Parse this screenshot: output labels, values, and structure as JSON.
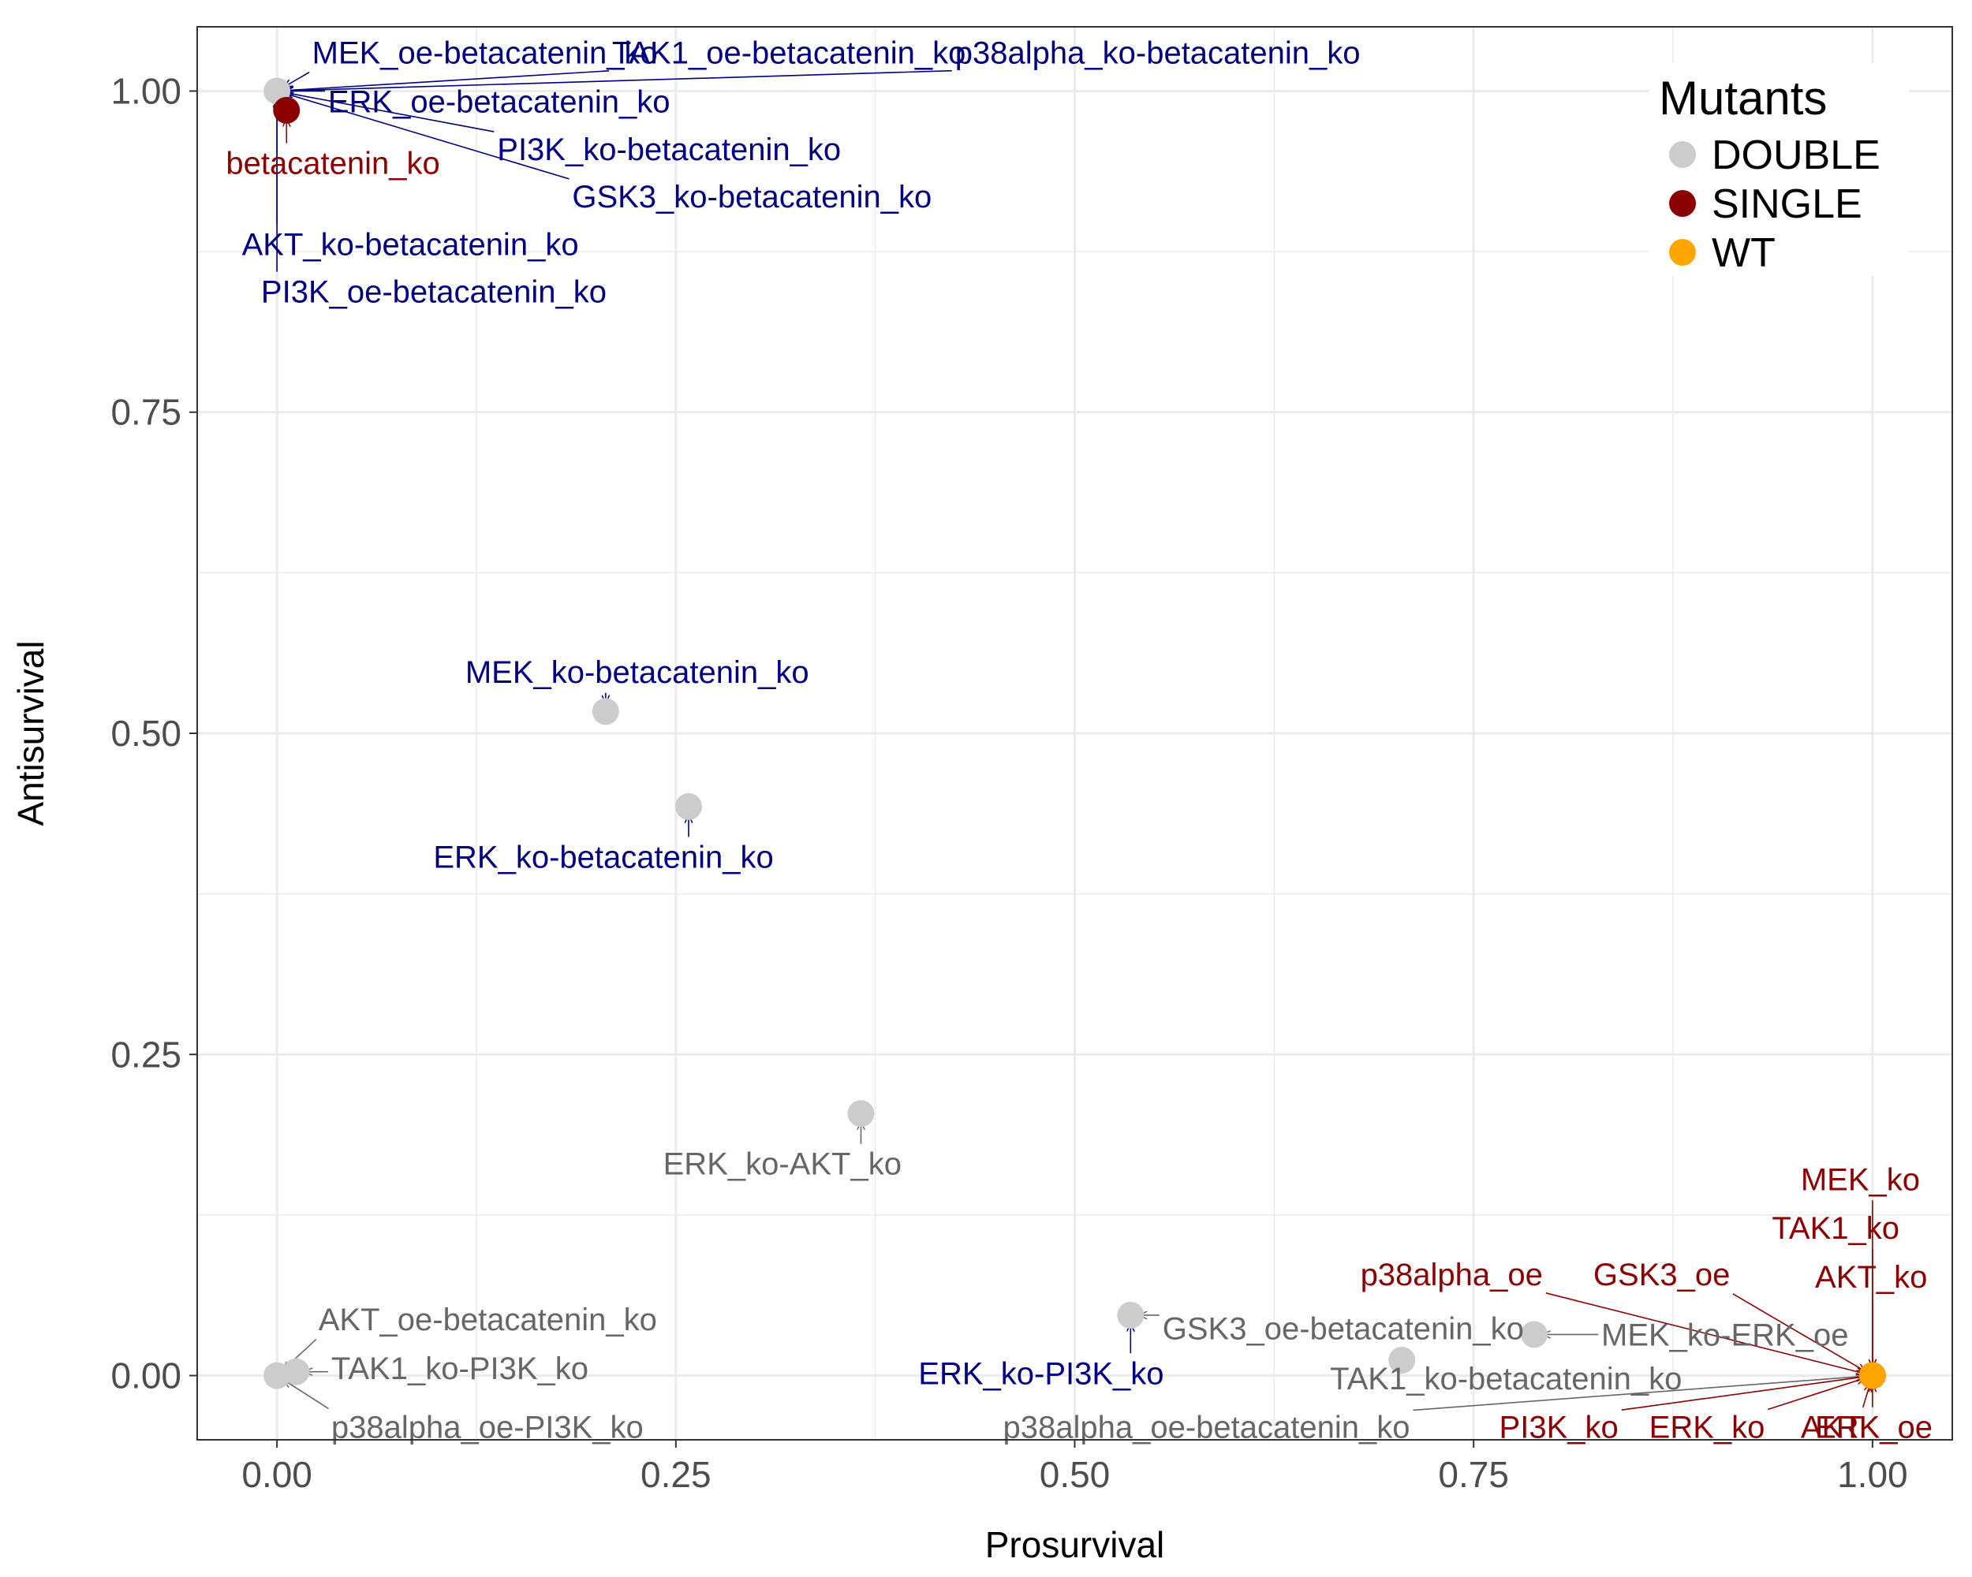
{
  "chart_data": {
    "type": "scatter",
    "xlabel": "Prosurvival",
    "ylabel": "Antisurvival",
    "xlim": [
      -0.05,
      1.05
    ],
    "ylim": [
      -0.05,
      1.05
    ],
    "x_ticks": [
      "0.00",
      "0.25",
      "0.50",
      "0.75",
      "1.00"
    ],
    "y_ticks": [
      "0.00",
      "0.25",
      "0.50",
      "0.75",
      "1.00"
    ],
    "grid": true,
    "legend": {
      "title": "Mutants",
      "position": "top-right",
      "entries": [
        {
          "name": "DOUBLE",
          "color": "#cccccc"
        },
        {
          "name": "SINGLE",
          "color": "#8b0000"
        },
        {
          "name": "WT",
          "color": "#ffa500"
        }
      ]
    },
    "colors": {
      "DOUBLE": "#cccccc",
      "SINGLE": "#8b0000",
      "WT": "#ffa500",
      "label_dark_blue": "#000080",
      "label_gray": "#666666",
      "label_red": "#8b0000"
    },
    "points": [
      {
        "label": "MEK_oe-betacatenin_ko",
        "x": 0.0,
        "y": 1.0,
        "group": "DOUBLE",
        "label_color": "#000080",
        "lx": 0.022,
        "ly": 1.03
      },
      {
        "label": "TAK1_oe-betacatenin_ko",
        "x": 0.0,
        "y": 1.0,
        "group": "DOUBLE",
        "label_color": "#000080",
        "lx": 0.21,
        "ly": 1.03
      },
      {
        "label": "p38alpha_ko-betacatenin_ko",
        "x": 0.0,
        "y": 1.0,
        "group": "DOUBLE",
        "label_color": "#000080",
        "lx": 0.425,
        "ly": 1.03
      },
      {
        "label": "ERK_oe-betacatenin_ko",
        "x": 0.0,
        "y": 1.0,
        "group": "DOUBLE",
        "label_color": "#000080",
        "lx": 0.032,
        "ly": 0.992
      },
      {
        "label": "PI3K_ko-betacatenin_ko",
        "x": 0.0,
        "y": 1.0,
        "group": "DOUBLE",
        "label_color": "#000080",
        "lx": 0.138,
        "ly": 0.955
      },
      {
        "label": "GSK3_ko-betacatenin_ko",
        "x": 0.0,
        "y": 1.0,
        "group": "DOUBLE",
        "label_color": "#000080",
        "lx": 0.185,
        "ly": 0.918
      },
      {
        "label": "AKT_ko-betacatenin_ko",
        "x": 0.0,
        "y": 1.0,
        "group": "DOUBLE",
        "label_color": "#000080",
        "lx": -0.022,
        "ly": 0.881
      },
      {
        "label": "PI3K_oe-betacatenin_ko",
        "x": 0.0,
        "y": 1.0,
        "group": "DOUBLE",
        "label_color": "#000080",
        "lx": -0.01,
        "ly": 0.844
      },
      {
        "label": "betacatenin_ko",
        "x": 0.006,
        "y": 0.985,
        "group": "SINGLE",
        "label_color": "#8b0000",
        "lx": -0.032,
        "ly": 0.944
      },
      {
        "label": "MEK_ko-betacatenin_ko",
        "x": 0.206,
        "y": 0.517,
        "group": "DOUBLE",
        "label_color": "#000080",
        "lx": 0.118,
        "ly": 0.548
      },
      {
        "label": "ERK_ko-betacatenin_ko",
        "x": 0.258,
        "y": 0.443,
        "group": "DOUBLE",
        "label_color": "#000080",
        "lx": 0.098,
        "ly": 0.404
      },
      {
        "label": "ERK_ko-AKT_ko",
        "x": 0.366,
        "y": 0.204,
        "group": "DOUBLE",
        "label_color": "#666666",
        "lx": 0.242,
        "ly": 0.165
      },
      {
        "label": "AKT_oe-betacatenin_ko",
        "x": 0.0,
        "y": 0.0,
        "group": "DOUBLE",
        "label_color": "#666666",
        "lx": 0.026,
        "ly": 0.044
      },
      {
        "label": "TAK1_ko-PI3K_ko",
        "x": 0.012,
        "y": 0.003,
        "group": "DOUBLE",
        "label_color": "#666666",
        "lx": 0.034,
        "ly": 0.006
      },
      {
        "label": "p38alpha_oe-PI3K_ko",
        "x": 0.0,
        "y": 0.0,
        "group": "DOUBLE",
        "label_color": "#666666",
        "lx": 0.034,
        "ly": -0.04
      },
      {
        "label": "GSK3_oe-betacatenin_ko",
        "x": 0.535,
        "y": 0.047,
        "group": "DOUBLE",
        "label_color": "#666666",
        "lx": 0.555,
        "ly": 0.037
      },
      {
        "label": "ERK_ko-PI3K_ko",
        "x": 0.535,
        "y": 0.047,
        "group": "DOUBLE",
        "label_color": "#000080",
        "lx": 0.402,
        "ly": 0.002
      },
      {
        "label": "TAK1_ko-betacatenin_ko",
        "x": 0.705,
        "y": 0.012,
        "group": "DOUBLE",
        "label_color": "#666666",
        "lx": 0.66,
        "ly": -0.002
      },
      {
        "label": "MEK_ko-ERK_oe",
        "x": 0.788,
        "y": 0.032,
        "group": "DOUBLE",
        "label_color": "#666666",
        "lx": 0.83,
        "ly": 0.032
      },
      {
        "label": "p38alpha_oe-betacatenin_ko",
        "x": 1.0,
        "y": 0.0,
        "group": "DOUBLE",
        "label_color": "#666666",
        "lx": 0.455,
        "ly": -0.04
      },
      {
        "label": "MEK_ko",
        "x": 1.0,
        "y": 0.0,
        "group": "SINGLE",
        "label_color": "#8b0000",
        "lx": 0.955,
        "ly": 0.153
      },
      {
        "label": "TAK1_ko",
        "x": 1.0,
        "y": 0.0,
        "group": "SINGLE",
        "label_color": "#8b0000",
        "lx": 0.937,
        "ly": 0.115
      },
      {
        "label": "AKT_ko",
        "x": 1.0,
        "y": 0.0,
        "group": "SINGLE",
        "label_color": "#8b0000",
        "lx": 0.964,
        "ly": 0.077
      },
      {
        "label": "p38alpha_oe",
        "x": 1.0,
        "y": 0.0,
        "group": "SINGLE",
        "label_color": "#8b0000",
        "lx": 0.679,
        "ly": 0.079
      },
      {
        "label": "GSK3_oe",
        "x": 1.0,
        "y": 0.0,
        "group": "SINGLE",
        "label_color": "#8b0000",
        "lx": 0.825,
        "ly": 0.079
      },
      {
        "label": "PI3K_ko",
        "x": 1.0,
        "y": 0.0,
        "group": "SINGLE",
        "label_color": "#8b0000",
        "lx": 0.766,
        "ly": -0.04
      },
      {
        "label": "ERK_ko",
        "x": 1.0,
        "y": 0.0,
        "group": "SINGLE",
        "label_color": "#8b0000",
        "lx": 0.86,
        "ly": -0.04
      },
      {
        "label": "AKT",
        "x": 1.0,
        "y": 0.0,
        "group": "SINGLE",
        "label_color": "#8b0000",
        "lx": 0.955,
        "ly": -0.04
      },
      {
        "label": "ERK_oe",
        "x": 1.0,
        "y": 0.0,
        "group": "SINGLE",
        "label_color": "#8b0000",
        "lx": 0.964,
        "ly": -0.04
      },
      {
        "label": "",
        "x": 1.0,
        "y": 0.0,
        "group": "WT",
        "label_color": "#ffa500",
        "lx": 1.0,
        "ly": 0.0
      }
    ]
  }
}
